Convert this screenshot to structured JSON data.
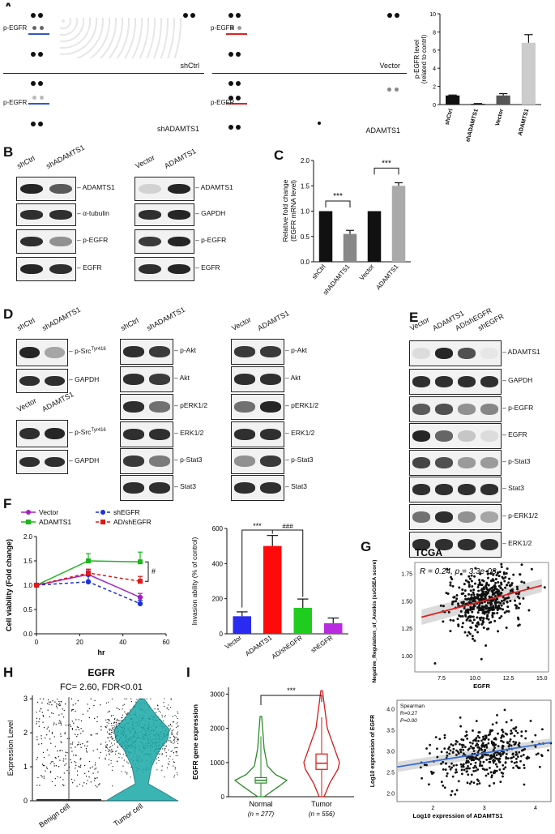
{
  "panels": {
    "A": "A",
    "B": "B",
    "C": "C",
    "D": "D",
    "E": "E",
    "F": "F",
    "G": "G",
    "H": "H",
    "I": "I"
  },
  "panelA": {
    "arrays": [
      {
        "label": "shCtrl",
        "marker": "p-EGFR"
      },
      {
        "label": "Vector",
        "marker": "p-EGFR"
      },
      {
        "label": "shADAMTS1",
        "marker": "p-EGFR"
      },
      {
        "label": "ADAMTS1",
        "marker": "p-EGFR"
      }
    ],
    "marker_colors": {
      "sh": "#3355cc",
      "ad": "#d22"
    }
  },
  "panelB": {
    "left_lanes": [
      "shCtrl",
      "shADAMTS1"
    ],
    "right_lanes": [
      "Vector",
      "ADAMTS1"
    ],
    "left_bands": [
      "ADAMTS1",
      "α-tubulin",
      "p-EGFR",
      "EGFR"
    ],
    "right_bands": [
      "ADAMTS1",
      "GAPDH",
      "p-EGFR",
      "EGFR"
    ]
  },
  "panelD": {
    "src_lanes_top": [
      "shCtrl",
      "shADAMTS1"
    ],
    "src_bands_top": [
      "p-SrcTyr416",
      "GAPDH"
    ],
    "src_lanes_bot": [
      "Vector",
      "ADAMTS1"
    ],
    "src_bands_bot": [
      "p-SrcTyr416",
      "GAPDH"
    ],
    "mid_lanes": [
      "shCtrl",
      "shADAMTS1"
    ],
    "right_lanes": [
      "Vector",
      "ADAMTS1"
    ],
    "mid_bands": [
      "p-Akt",
      "Akt",
      "pERK1/2",
      "ERK1/2",
      "p-Stat3",
      "Stat3"
    ],
    "src_superscript": "Tyr416",
    "src_base": "p-Src"
  },
  "panelE": {
    "lanes": [
      "Vector",
      "ADAMTS1",
      "AD/shEGFR",
      "shEGFR"
    ],
    "bands": [
      "ADAMTS1",
      "GAPDH",
      "p-EGFR",
      "EGFR",
      "p-Stat3",
      "Stat3",
      "p-ERK1/2",
      "ERK1/2"
    ]
  },
  "panelH": {
    "title": "EGFR",
    "subtitle": "FC= 2.60, FDR<0.01",
    "ylabel": "Expression Level",
    "categories": [
      "Benign cell",
      "Tumor cell"
    ],
    "yticks": [
      "0",
      "1",
      "2",
      "3"
    ]
  },
  "chart_data": [
    {
      "id": "A-bar",
      "type": "bar",
      "categories": [
        "shCtrl",
        "shADAMTS1",
        "Vector",
        "ADAMTS1"
      ],
      "values": [
        1.0,
        0.08,
        1.0,
        6.8
      ],
      "errors": [
        0.05,
        0.03,
        0.2,
        0.9
      ],
      "colors": [
        "#111111",
        "#111111",
        "#555555",
        "#cccccc"
      ],
      "ylabel": "p-EGFR level (related to contrl)",
      "ylim": [
        0,
        10
      ],
      "yticks": [
        0,
        2,
        4,
        6,
        8,
        10
      ]
    },
    {
      "id": "C-bar",
      "type": "bar",
      "categories": [
        "shCtrl",
        "shADAMTS1",
        "Vector",
        "ADAMTS1"
      ],
      "values": [
        1.0,
        0.55,
        1.0,
        1.5
      ],
      "errors": [
        0,
        0.07,
        0,
        0.06
      ],
      "colors": [
        "#111111",
        "#888888",
        "#111111",
        "#aaaaaa"
      ],
      "ylabel": "Relative fold change (EGFR mRNA level)",
      "ylim": [
        0,
        2.0
      ],
      "yticks": [
        0.0,
        0.5,
        1.0,
        1.5,
        2.0
      ],
      "annotations": [
        "***",
        "***"
      ]
    },
    {
      "id": "F-line",
      "type": "line",
      "x": [
        0,
        24,
        48
      ],
      "series": [
        {
          "name": "Vector",
          "values": [
            1.0,
            1.22,
            0.75
          ],
          "errors": [
            0,
            0.1,
            0.08
          ],
          "color": "#a020c0",
          "dash": false
        },
        {
          "name": "ADAMTS1",
          "values": [
            1.0,
            1.5,
            1.48
          ],
          "errors": [
            0,
            0.15,
            0.2
          ],
          "color": "#1db41d",
          "dash": false
        },
        {
          "name": "shEGFR",
          "values": [
            1.0,
            1.07,
            0.62
          ],
          "errors": [
            0,
            0.12,
            0.07
          ],
          "color": "#1c2fd8",
          "dash": true
        },
        {
          "name": "AD/shEGFR",
          "values": [
            1.0,
            1.25,
            1.08
          ],
          "errors": [
            0,
            0.08,
            0.1
          ],
          "color": "#e01818",
          "dash": true
        }
      ],
      "xlabel": "hr",
      "ylabel": "Cell viability (Fold change)",
      "xlim": [
        0,
        60
      ],
      "ylim": [
        0,
        2.0
      ],
      "xticks": [
        0,
        20,
        40,
        60
      ],
      "yticks": [
        0.0,
        0.5,
        1.0,
        1.5,
        2.0
      ],
      "annotation": "#"
    },
    {
      "id": "F-bar",
      "type": "bar",
      "categories": [
        "Vector",
        "ADAMTS1",
        "AD/shEGFR",
        "shEGFR"
      ],
      "values": [
        100,
        500,
        148,
        60
      ],
      "errors": [
        25,
        60,
        50,
        30
      ],
      "colors": [
        "#2a2af0",
        "#ff0a0a",
        "#1fcc1f",
        "#b82be0"
      ],
      "ylabel": "Invasion ability (% of control)",
      "ylim": [
        0,
        600
      ],
      "yticks": [
        0,
        200,
        400,
        600
      ],
      "annotations": [
        "***",
        "###"
      ]
    },
    {
      "id": "G-scatter",
      "type": "scatter",
      "title": "TCGA",
      "annotation": "R = 0.24, p = 3.3e-08",
      "xlabel": "EGFR",
      "ylabel": "Negative_Regulation_of_Anoikis (ssGSEA score)",
      "xlim": [
        5.5,
        15.5
      ],
      "ylim": [
        0.85,
        1.85
      ],
      "xticks": [
        7.5,
        10.0,
        12.5,
        15.0
      ],
      "yticks": [
        1.0,
        1.25,
        1.5,
        1.75
      ],
      "fit": {
        "x0": 6,
        "y0": 1.35,
        "x1": 15,
        "y1": 1.64
      }
    },
    {
      "id": "G2-scatter",
      "type": "scatter",
      "annotation_lines": [
        "Spearman",
        "R=0.27",
        "P=0.00"
      ],
      "xlabel": "Log10 expression of ADAMTS1",
      "ylabel": "Log10 expression of EGFR",
      "xlim": [
        1.3,
        4.3
      ],
      "ylim": [
        1.8,
        4.2
      ],
      "xticks": [
        2,
        3,
        4
      ],
      "yticks": [
        2.0,
        2.5,
        3.0,
        3.5,
        4.0
      ],
      "fit": {
        "x0": 1.3,
        "y0": 2.62,
        "x1": 4.3,
        "y1": 3.2
      }
    },
    {
      "id": "I-violin",
      "type": "violin",
      "categories": [
        "Normal",
        "Tumor"
      ],
      "n_labels": [
        "(n = 277)",
        "(n = 556)"
      ],
      "medians": [
        480,
        980
      ],
      "q1": [
        400,
        800
      ],
      "q3": [
        560,
        1250
      ],
      "max": [
        2350,
        3100
      ],
      "colors": [
        "#2a8a2a",
        "#d21a1a"
      ],
      "ylabel": "EGFR gene expression",
      "ylim": [
        0,
        3200
      ],
      "yticks": [
        0,
        1000,
        2000,
        3000
      ],
      "annotation": "***"
    }
  ],
  "text": {
    "H_benign": "Benign cell",
    "H_tumor": "Tumor cell",
    "I_normal": "Normal",
    "I_tumor": "Tumor",
    "I_n_normal": "(n = 277)",
    "I_n_tumor": "(n = 556)",
    "I_ylabel": "EGFR gene expression",
    "G_title": "TCGA",
    "G_r": "R = 0.24, p = 3.3e-08",
    "G_xlabel": "EGFR",
    "G_ylabel": "Negative_Regulation_of_Anoikis (ssGSEA score)",
    "G2_xlabel": "Log10 expression of ADAMTS1",
    "G2_ylabel": "Log10 expression of EGFR",
    "G2_s": "Spearman",
    "G2_r": "R=0.27",
    "G2_p": "P=0.00",
    "F_xlabel": "hr",
    "F_ylabel": "Cell viability (Fold change)",
    "F_hash": "#",
    "F_invylabel": "Invasion ability (% of control)",
    "F_stars": "***",
    "F_hashes": "###",
    "C_ylabel1": "Relative fold change",
    "C_ylabel2": "(EGFR mRNA level)",
    "C_stars": "***",
    "A_ylabel1": "p-EGFR level",
    "A_ylabel2": "(related to contrl)"
  }
}
